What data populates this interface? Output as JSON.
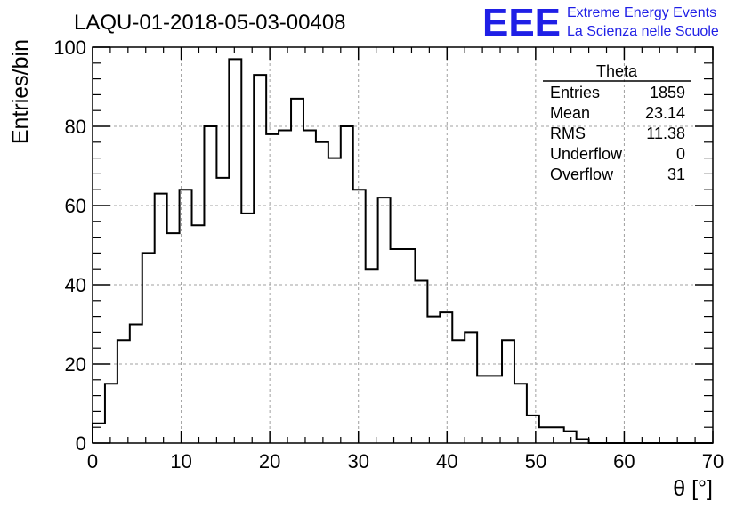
{
  "chart_data": {
    "type": "bar",
    "title": "LAQU-01-2018-05-03-00408",
    "xlabel": "θ [°]",
    "ylabel": "Entries/bin",
    "xlim": [
      0,
      70
    ],
    "ylim": [
      0,
      100
    ],
    "grid": true,
    "bin_width": 1.4,
    "x_ticks": [
      "0",
      "10",
      "20",
      "30",
      "40",
      "50",
      "60",
      "70"
    ],
    "y_ticks": [
      "0",
      "20",
      "40",
      "60",
      "80",
      "100"
    ],
    "values": [
      5,
      15,
      26,
      30,
      48,
      63,
      53,
      64,
      55,
      80,
      67,
      97,
      58,
      93,
      78,
      79,
      87,
      79,
      76,
      72,
      80,
      64,
      44,
      62,
      49,
      49,
      41,
      32,
      33,
      26,
      28,
      17,
      17,
      26,
      15,
      7,
      4,
      4,
      3,
      1,
      0,
      0,
      0,
      0,
      0,
      0,
      0,
      0,
      0,
      0
    ],
    "stats": {
      "name": "Theta",
      "rows": [
        {
          "label": "Entries",
          "value": "1859"
        },
        {
          "label": "Mean",
          "value": "23.14"
        },
        {
          "label": "RMS",
          "value": "11.38"
        },
        {
          "label": "Underflow",
          "value": "0"
        },
        {
          "label": "Overflow",
          "value": "31"
        }
      ]
    }
  },
  "logo": {
    "mark": "EEE",
    "line1": "Extreme Energy Events",
    "line2": "La Scienza nelle Scuole",
    "color": "#1f1fe6"
  }
}
